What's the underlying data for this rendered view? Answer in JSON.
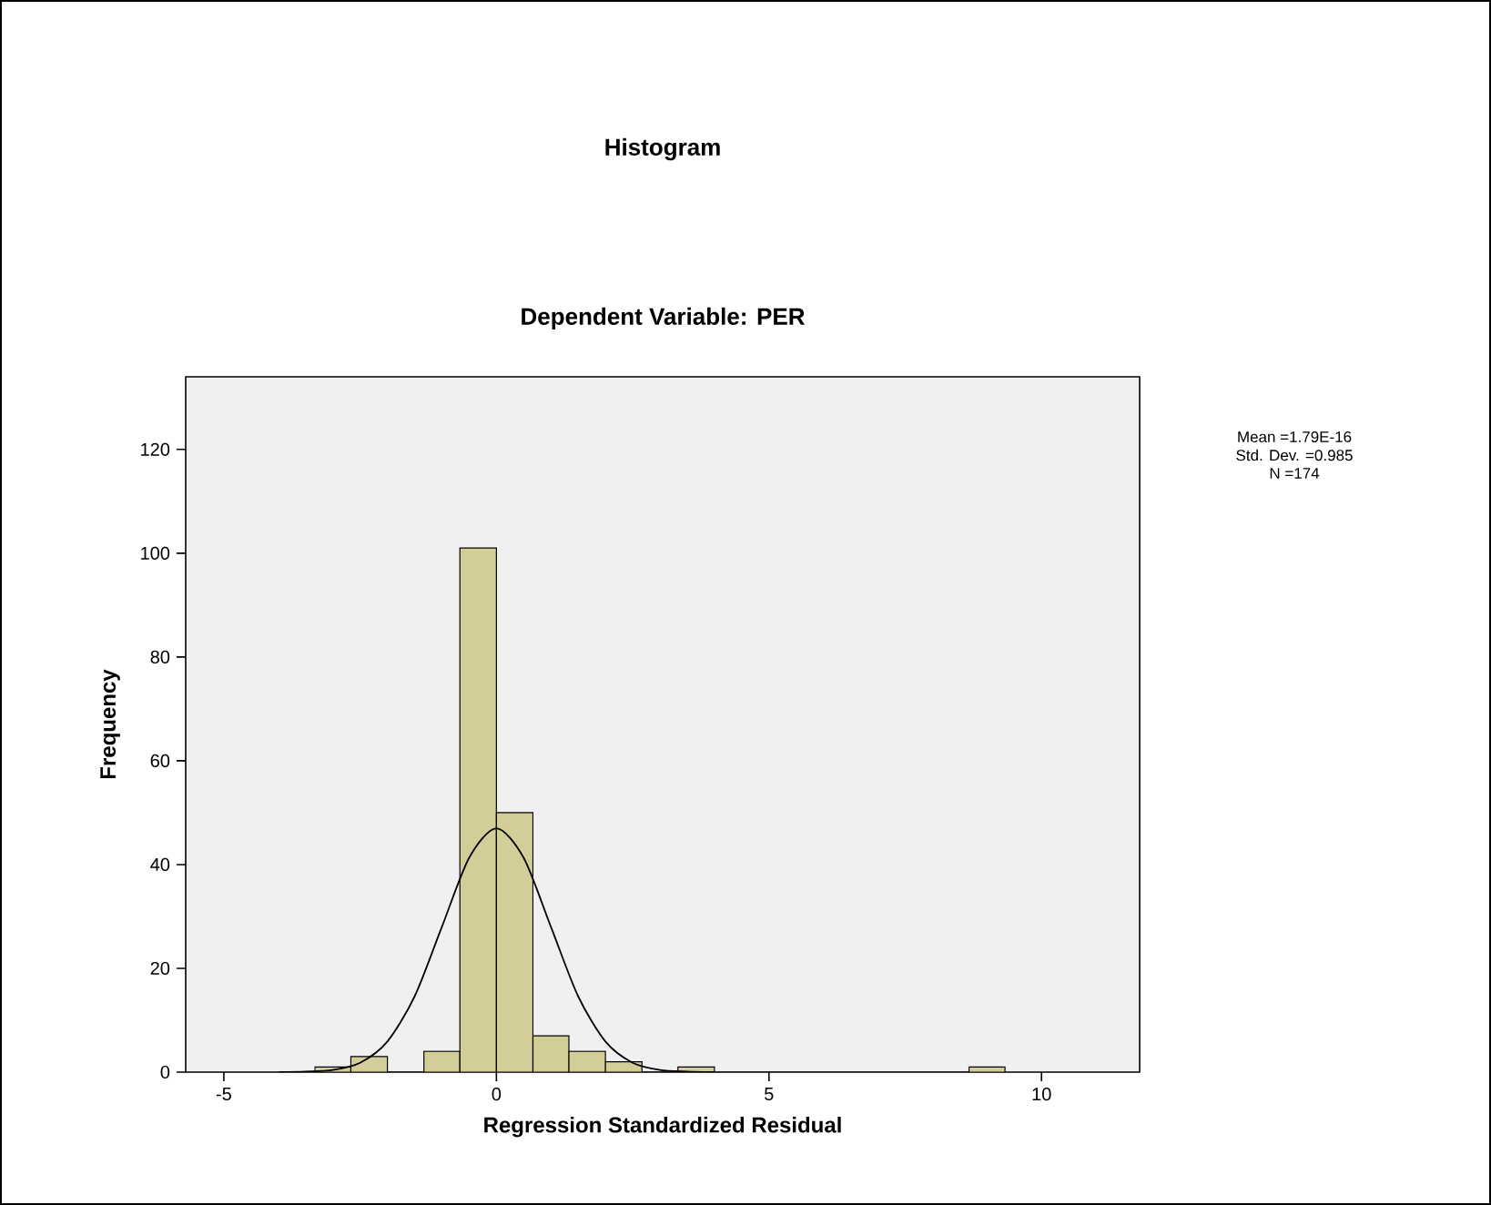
{
  "chart_data": {
    "type": "histogram",
    "title": "Histogram",
    "subtitle": "Dependent Variable: PER",
    "xlabel": "Regression Standardized Residual",
    "ylabel": "Frequency",
    "bins": [
      -3.33,
      -2.67,
      -2.0,
      -1.33,
      -0.67,
      0.0,
      0.67,
      1.33,
      2.0,
      2.67,
      3.33,
      4.0,
      8.67,
      9.33
    ],
    "values": [
      1,
      3,
      0,
      4,
      101,
      50,
      7,
      4,
      2,
      0,
      1,
      0,
      1
    ],
    "color": "#d3ce97",
    "series": [
      {
        "type": "line",
        "color": "#000000",
        "x": [
          -4,
          -3.5,
          -3,
          -2.5,
          -2,
          -1.5,
          -1,
          -0.5,
          0,
          0.5,
          1,
          1.5,
          2,
          2.5,
          3,
          3.5,
          4
        ],
        "values": [
          0,
          0.1,
          0.4,
          1.8,
          5.9,
          14.6,
          28,
          41.3,
          47,
          41.3,
          28,
          14.6,
          5.9,
          1.8,
          0.4,
          0.1,
          0
        ]
      }
    ],
    "xlim": [
      -5.7,
      11.8
    ],
    "ylim": [
      0,
      134
    ],
    "xticks": [
      -5,
      0,
      5,
      10
    ],
    "yticks": [
      0,
      20,
      40,
      60,
      80,
      100,
      120
    ],
    "annotations": [
      "Mean =1.79E-16",
      "Std. Dev. =0.985",
      "N =174"
    ],
    "grid": false
  }
}
